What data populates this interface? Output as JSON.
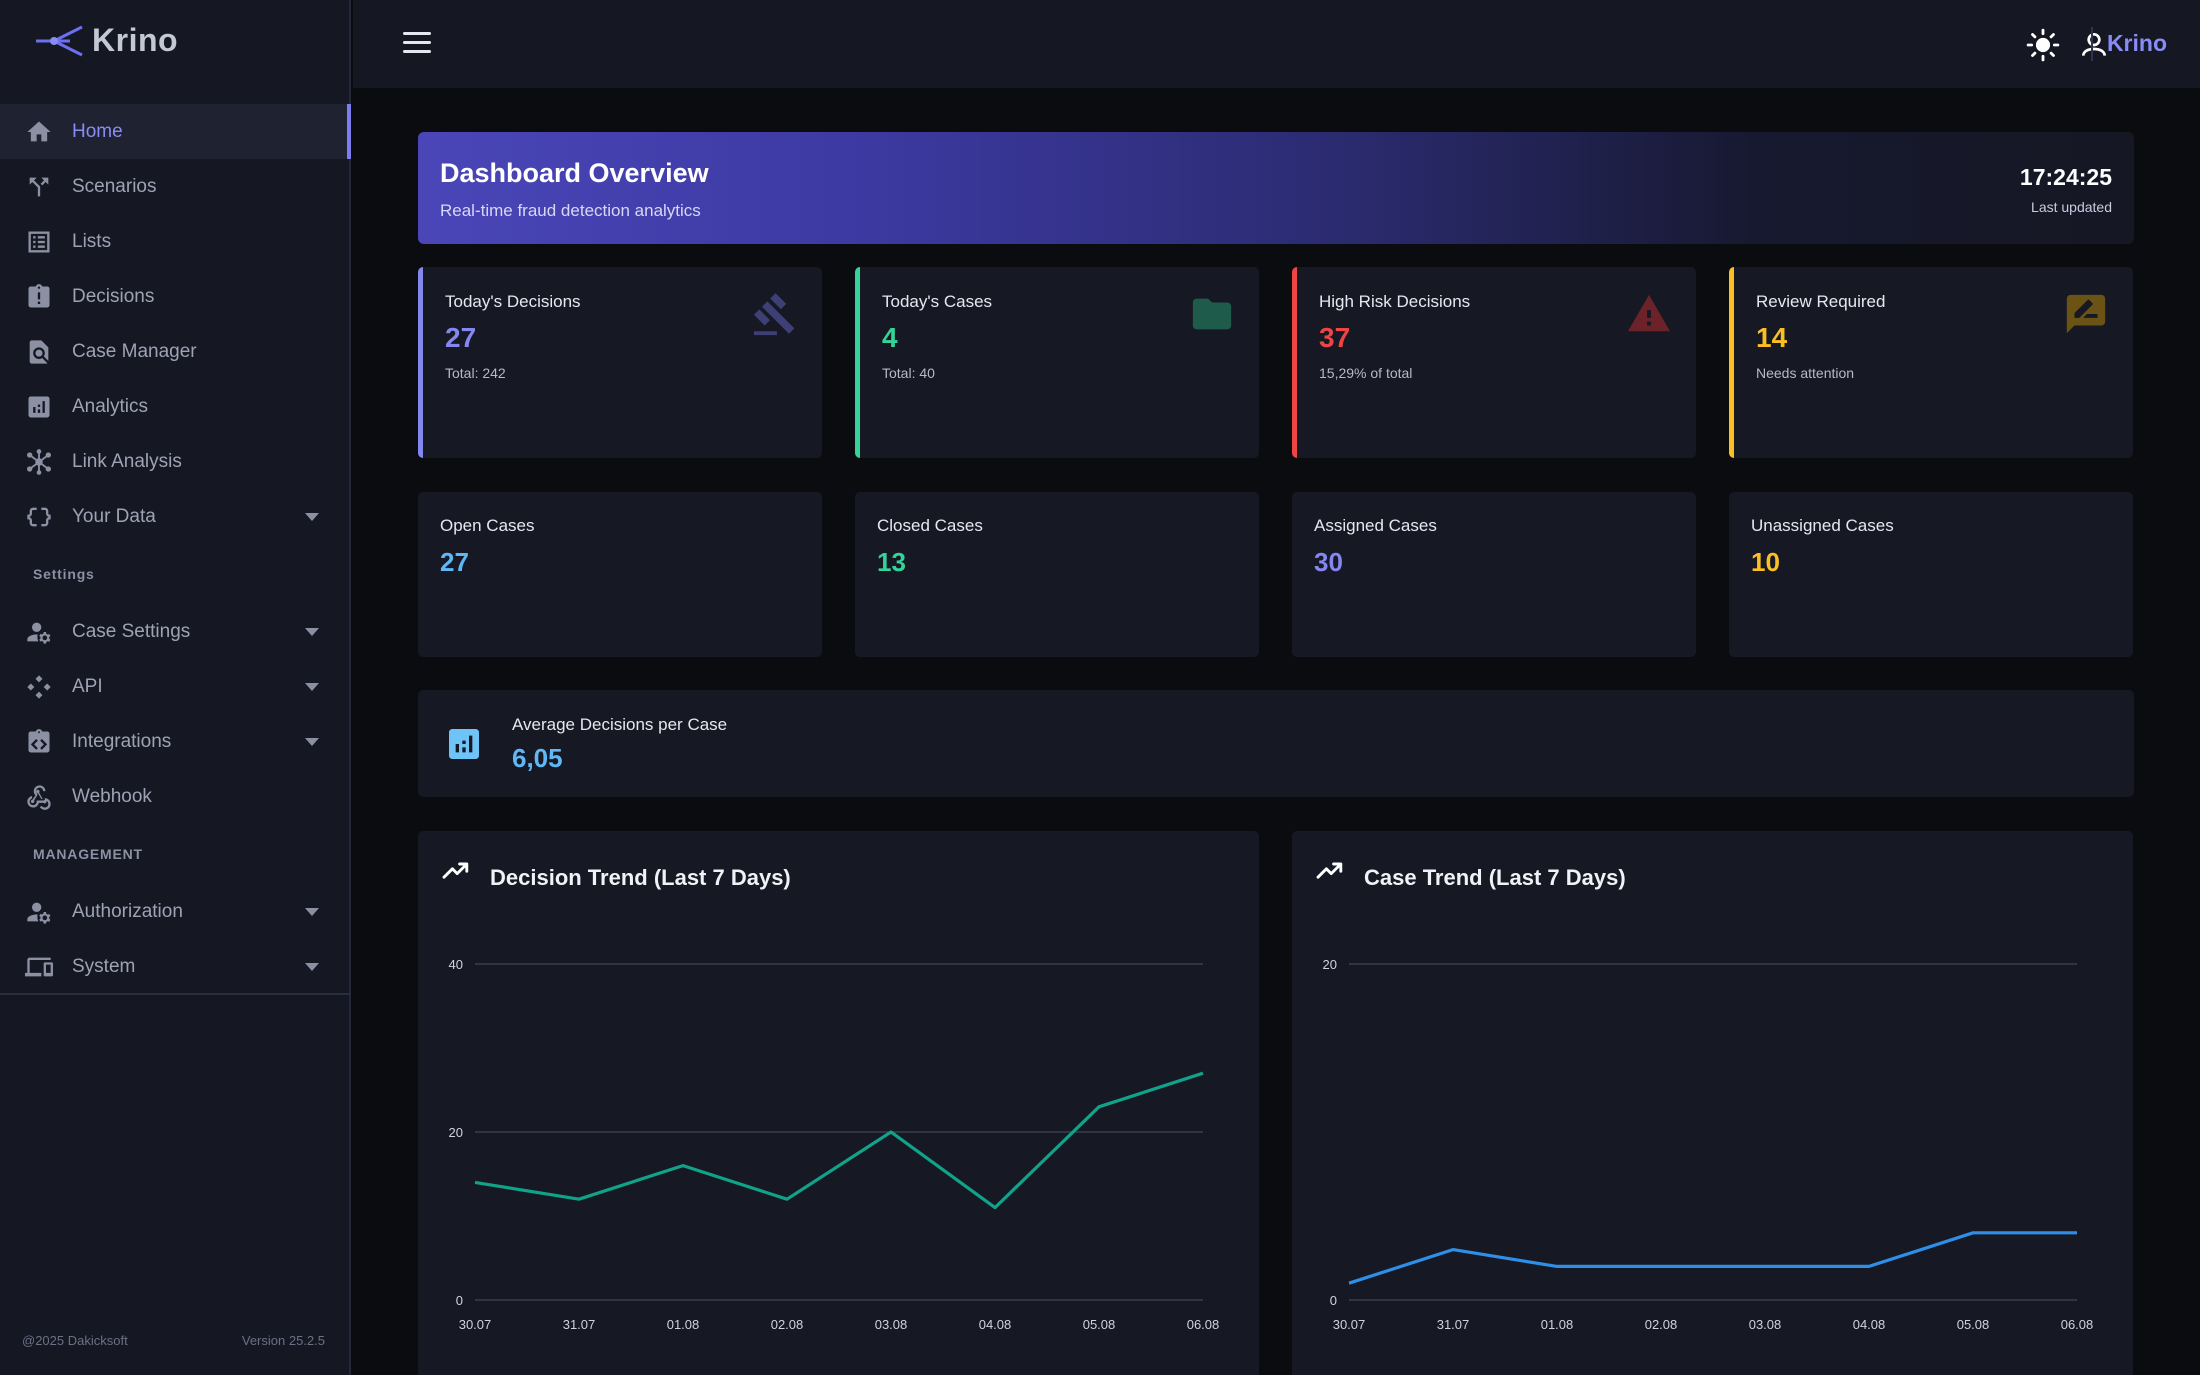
{
  "app": {
    "name": "Krino"
  },
  "sidebar": {
    "items": [
      {
        "label": "Home",
        "active": true
      },
      {
        "label": "Scenarios"
      },
      {
        "label": "Lists"
      },
      {
        "label": "Decisions"
      },
      {
        "label": "Case Manager"
      },
      {
        "label": "Analytics"
      },
      {
        "label": "Link Analysis"
      },
      {
        "label": "Your Data",
        "expandable": true
      }
    ],
    "settings_heading": "Settings",
    "settings_items": [
      {
        "label": "Case Settings",
        "expandable": true
      },
      {
        "label": "API",
        "expandable": true
      },
      {
        "label": "Integrations",
        "expandable": true
      },
      {
        "label": "Webhook"
      }
    ],
    "management_heading": "MANAGEMENT",
    "management_items": [
      {
        "label": "Authorization",
        "expandable": true
      },
      {
        "label": "System",
        "expandable": true
      }
    ],
    "footer_copyright": "@2025 Dakicksoft",
    "footer_version": "Version 25.2.5"
  },
  "topbar": {
    "brand": "Krino"
  },
  "banner": {
    "title": "Dashboard Overview",
    "subtitle": "Real-time fraud detection analytics",
    "time": "17:24:25",
    "updated_label": "Last updated"
  },
  "stats": [
    {
      "label": "Today's Decisions",
      "value": "27",
      "sub": "Total: 242",
      "color": "#8587f0",
      "icon": "gavel-icon"
    },
    {
      "label": "Today's Cases",
      "value": "4",
      "sub": "Total: 40",
      "color": "#34d399",
      "icon": "folder-icon"
    },
    {
      "label": "High Risk Decisions",
      "value": "37",
      "sub": "15,29% of total",
      "color": "#ef4444",
      "icon": "warning-icon"
    },
    {
      "label": "Review Required",
      "value": "14",
      "sub": "Needs attention",
      "color": "#fbbf24",
      "icon": "rate-review-icon"
    }
  ],
  "case_counts": [
    {
      "label": "Open Cases",
      "value": "27",
      "color": "#5fb8f5"
    },
    {
      "label": "Closed Cases",
      "value": "13",
      "color": "#34d399"
    },
    {
      "label": "Assigned Cases",
      "value": "30",
      "color": "#8587f0"
    },
    {
      "label": "Unassigned Cases",
      "value": "10",
      "color": "#fbbf24"
    }
  ],
  "average": {
    "label": "Average Decisions per Case",
    "value": "6,05"
  },
  "chart_data": [
    {
      "type": "line",
      "title": "Decision Trend (Last 7 Days)",
      "x": [
        "30.07",
        "31.07",
        "01.08",
        "02.08",
        "03.08",
        "04.08",
        "05.08",
        "06.08"
      ],
      "series": [
        {
          "values": [
            14,
            12,
            16,
            12,
            20,
            11,
            23,
            27
          ],
          "color": "#10a38a"
        }
      ],
      "yticks": [
        0,
        20,
        40
      ],
      "ylim": [
        0,
        40
      ],
      "grid": true
    },
    {
      "type": "line",
      "title": "Case Trend (Last 7 Days)",
      "x": [
        "30.07",
        "31.07",
        "01.08",
        "02.08",
        "03.08",
        "04.08",
        "05.08",
        "06.08"
      ],
      "series": [
        {
          "values": [
            1,
            3,
            2,
            2,
            2,
            2,
            4,
            4
          ],
          "color": "#2f8fe8"
        }
      ],
      "yticks": [
        0,
        20
      ],
      "ylim": [
        0,
        20
      ],
      "grid": true
    }
  ]
}
